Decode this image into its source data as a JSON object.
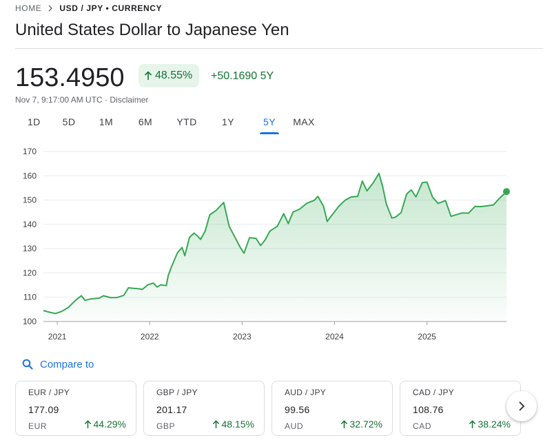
{
  "breadcrumb": {
    "home": "HOME",
    "current": "USD / JPY • CURRENCY"
  },
  "title": "United States Dollar to Japanese Yen",
  "quote": {
    "price": "153.4950",
    "change_pct": "48.55%",
    "change_abs": "+50.1690 5Y",
    "timestamp": "Nov 7, 9:17:00 AM UTC · Disclaimer"
  },
  "tabs": [
    {
      "label": "1D",
      "active": false
    },
    {
      "label": "5D",
      "active": false
    },
    {
      "label": "1M",
      "active": false
    },
    {
      "label": "6M",
      "active": false
    },
    {
      "label": "YTD",
      "active": false
    },
    {
      "label": "1Y",
      "active": false
    },
    {
      "label": "5Y",
      "active": true
    },
    {
      "label": "MAX",
      "active": false
    }
  ],
  "chart_data": {
    "type": "area",
    "range": "5Y",
    "y_ticks": [
      "170",
      "160",
      "150",
      "140",
      "130",
      "120",
      "110",
      "100"
    ],
    "ylim": [
      100,
      170
    ],
    "x_tick_labels": [
      "2021",
      "2022",
      "2023",
      "2024",
      "2025"
    ],
    "x_tick_years": [
      2021.0,
      2022.0,
      2023.0,
      2024.0,
      2025.0
    ],
    "xlim": [
      2020.85,
      2025.86
    ],
    "line_color": "#34a853",
    "fill_color": "#34a853",
    "series": [
      {
        "values": [
          [
            2020.85,
            104.5
          ],
          [
            2020.92,
            103.8
          ],
          [
            2020.98,
            103.3
          ],
          [
            2021.05,
            104.2
          ],
          [
            2021.12,
            105.8
          ],
          [
            2021.2,
            108.8
          ],
          [
            2021.26,
            110.6
          ],
          [
            2021.3,
            108.7
          ],
          [
            2021.36,
            109.3
          ],
          [
            2021.45,
            109.6
          ],
          [
            2021.5,
            110.6
          ],
          [
            2021.58,
            109.8
          ],
          [
            2021.65,
            109.9
          ],
          [
            2021.72,
            110.8
          ],
          [
            2021.77,
            113.9
          ],
          [
            2021.82,
            113.7
          ],
          [
            2021.88,
            113.5
          ],
          [
            2021.92,
            113.2
          ],
          [
            2021.98,
            115.1
          ],
          [
            2022.04,
            115.8
          ],
          [
            2022.08,
            114.2
          ],
          [
            2022.12,
            115.1
          ],
          [
            2022.18,
            114.8
          ],
          [
            2022.2,
            118.9
          ],
          [
            2022.23,
            122.0
          ],
          [
            2022.3,
            128.3
          ],
          [
            2022.35,
            130.5
          ],
          [
            2022.38,
            127.1
          ],
          [
            2022.43,
            134.6
          ],
          [
            2022.48,
            136.4
          ],
          [
            2022.52,
            135.1
          ],
          [
            2022.55,
            133.8
          ],
          [
            2022.6,
            137.2
          ],
          [
            2022.65,
            143.9
          ],
          [
            2022.72,
            145.8
          ],
          [
            2022.8,
            149.0
          ],
          [
            2022.86,
            139.2
          ],
          [
            2022.92,
            134.8
          ],
          [
            2022.98,
            130.5
          ],
          [
            2023.02,
            128.1
          ],
          [
            2023.08,
            134.5
          ],
          [
            2023.15,
            134.2
          ],
          [
            2023.2,
            131.3
          ],
          [
            2023.25,
            133.6
          ],
          [
            2023.3,
            137.2
          ],
          [
            2023.38,
            139.2
          ],
          [
            2023.45,
            144.4
          ],
          [
            2023.5,
            140.3
          ],
          [
            2023.55,
            145.1
          ],
          [
            2023.62,
            146.2
          ],
          [
            2023.7,
            148.7
          ],
          [
            2023.78,
            149.9
          ],
          [
            2023.82,
            151.5
          ],
          [
            2023.88,
            147.5
          ],
          [
            2023.92,
            141.2
          ],
          [
            2023.98,
            144.2
          ],
          [
            2024.05,
            147.6
          ],
          [
            2024.12,
            150.1
          ],
          [
            2024.18,
            151.3
          ],
          [
            2024.25,
            151.5
          ],
          [
            2024.3,
            157.8
          ],
          [
            2024.35,
            153.8
          ],
          [
            2024.42,
            157.2
          ],
          [
            2024.48,
            161.0
          ],
          [
            2024.52,
            155.6
          ],
          [
            2024.56,
            148.4
          ],
          [
            2024.62,
            142.6
          ],
          [
            2024.66,
            143.0
          ],
          [
            2024.72,
            144.8
          ],
          [
            2024.78,
            152.5
          ],
          [
            2024.83,
            154.2
          ],
          [
            2024.88,
            151.3
          ],
          [
            2024.95,
            157.2
          ],
          [
            2025.0,
            157.4
          ],
          [
            2025.06,
            151.2
          ],
          [
            2025.12,
            148.6
          ],
          [
            2025.2,
            149.8
          ],
          [
            2025.26,
            143.3
          ],
          [
            2025.32,
            144.0
          ],
          [
            2025.38,
            144.7
          ],
          [
            2025.45,
            144.6
          ],
          [
            2025.52,
            147.4
          ],
          [
            2025.58,
            147.3
          ],
          [
            2025.65,
            147.6
          ],
          [
            2025.72,
            148.0
          ],
          [
            2025.78,
            150.6
          ],
          [
            2025.82,
            152.0
          ],
          [
            2025.86,
            153.5
          ]
        ]
      }
    ]
  },
  "compare": {
    "label": "Compare to",
    "icon": "search-icon"
  },
  "cards": [
    {
      "pair": "EUR / JPY",
      "rate": "177.09",
      "code": "EUR",
      "change": "44.29%"
    },
    {
      "pair": "GBP / JPY",
      "rate": "201.17",
      "code": "GBP",
      "change": "48.15%"
    },
    {
      "pair": "AUD / JPY",
      "rate": "99.56",
      "code": "AUD",
      "change": "32.72%"
    },
    {
      "pair": "CAD / JPY",
      "rate": "108.76",
      "code": "CAD",
      "change": "38.24%"
    }
  ],
  "next_icon": "chevron-right-icon"
}
